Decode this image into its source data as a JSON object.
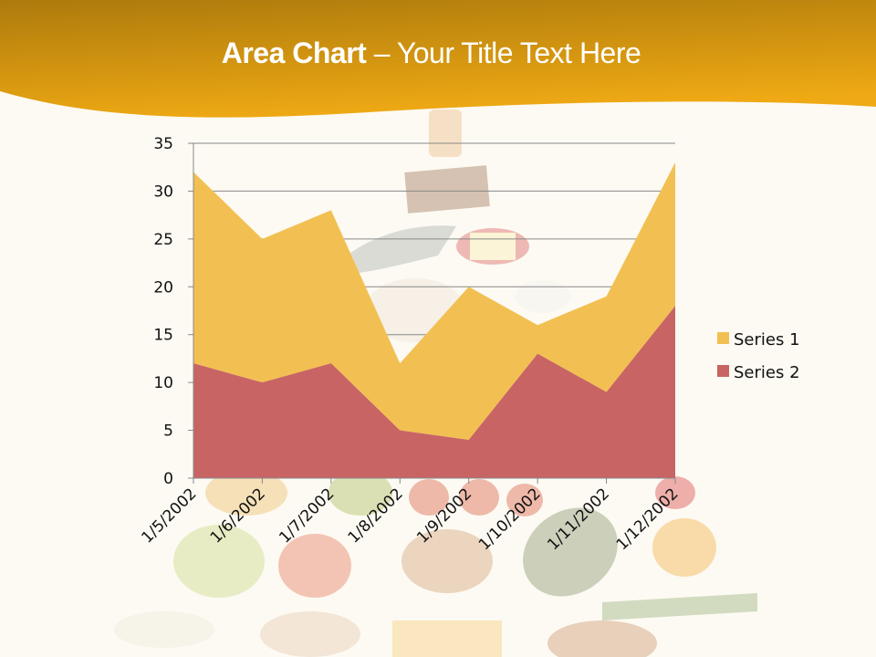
{
  "slide": {
    "title_bold": "Area Chart",
    "title_rest": " – Your Title Text Here",
    "colors": {
      "header_top": "#b07c0a",
      "header_bottom": "#eeab14",
      "background": "#fdfaf3",
      "series1": "#f2c052",
      "series2": "#c86464",
      "grid": "#888888"
    }
  },
  "chart_data": {
    "type": "area",
    "stacked": true,
    "title": "Area Chart – Your Title Text Here",
    "xlabel": "",
    "ylabel": "",
    "categories": [
      "1/5/2002",
      "1/6/2002",
      "1/7/2002",
      "1/8/2002",
      "1/9/2002",
      "1/10/2002",
      "1/11/2002",
      "1/12/2002"
    ],
    "series": [
      {
        "name": "Series 1",
        "values": [
          20,
          15,
          16,
          7,
          16,
          3,
          10,
          15
        ],
        "color": "#f2c052"
      },
      {
        "name": "Series 2",
        "values": [
          12,
          10,
          12,
          5,
          4,
          13,
          9,
          18
        ],
        "color": "#c86464"
      }
    ],
    "ylim": [
      0,
      35
    ],
    "yticks": [
      0,
      5,
      10,
      15,
      20,
      25,
      30,
      35
    ],
    "grid": true,
    "legend_position": "right"
  }
}
